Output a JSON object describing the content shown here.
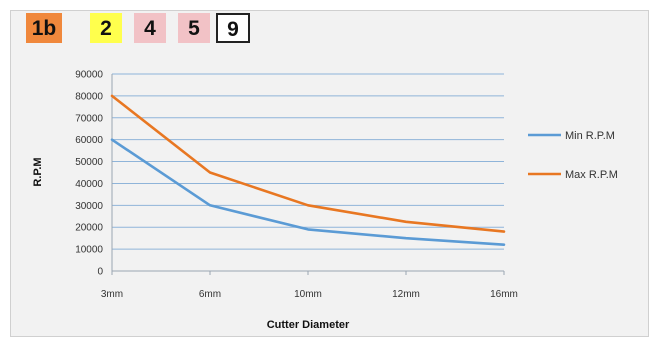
{
  "badges": [
    {
      "label": "1b",
      "bg": "#f0883c",
      "border": "#f0883c"
    },
    {
      "label": "2",
      "bg": "#ffff4d",
      "border": "#ffff4d"
    },
    {
      "label": "4",
      "bg": "#f2c2c6",
      "border": "#f2c2c6"
    },
    {
      "label": "5",
      "bg": "#f2c2c6",
      "border": "#f2c2c6"
    },
    {
      "label": "9",
      "bg": "#ffffff",
      "border": "#222222"
    }
  ],
  "chart_data": {
    "type": "line",
    "title": "",
    "xlabel": "Cutter Diameter",
    "ylabel": "R.P.M",
    "categories": [
      "3mm",
      "6mm",
      "10mm",
      "12mm",
      "16mm"
    ],
    "ylim": [
      0,
      90000
    ],
    "yticks": [
      "0",
      "10000",
      "20000",
      "30000",
      "40000",
      "50000",
      "60000",
      "70000",
      "80000",
      "90000"
    ],
    "grid": true,
    "legend_position": "right",
    "series": [
      {
        "name": "Min R.P.M",
        "color": "#5b9bd5",
        "values": [
          60000,
          30000,
          19000,
          15000,
          12000
        ]
      },
      {
        "name": "Max R.P.M",
        "color": "#e87722",
        "values": [
          80000,
          45000,
          30000,
          22500,
          18000
        ]
      }
    ]
  }
}
